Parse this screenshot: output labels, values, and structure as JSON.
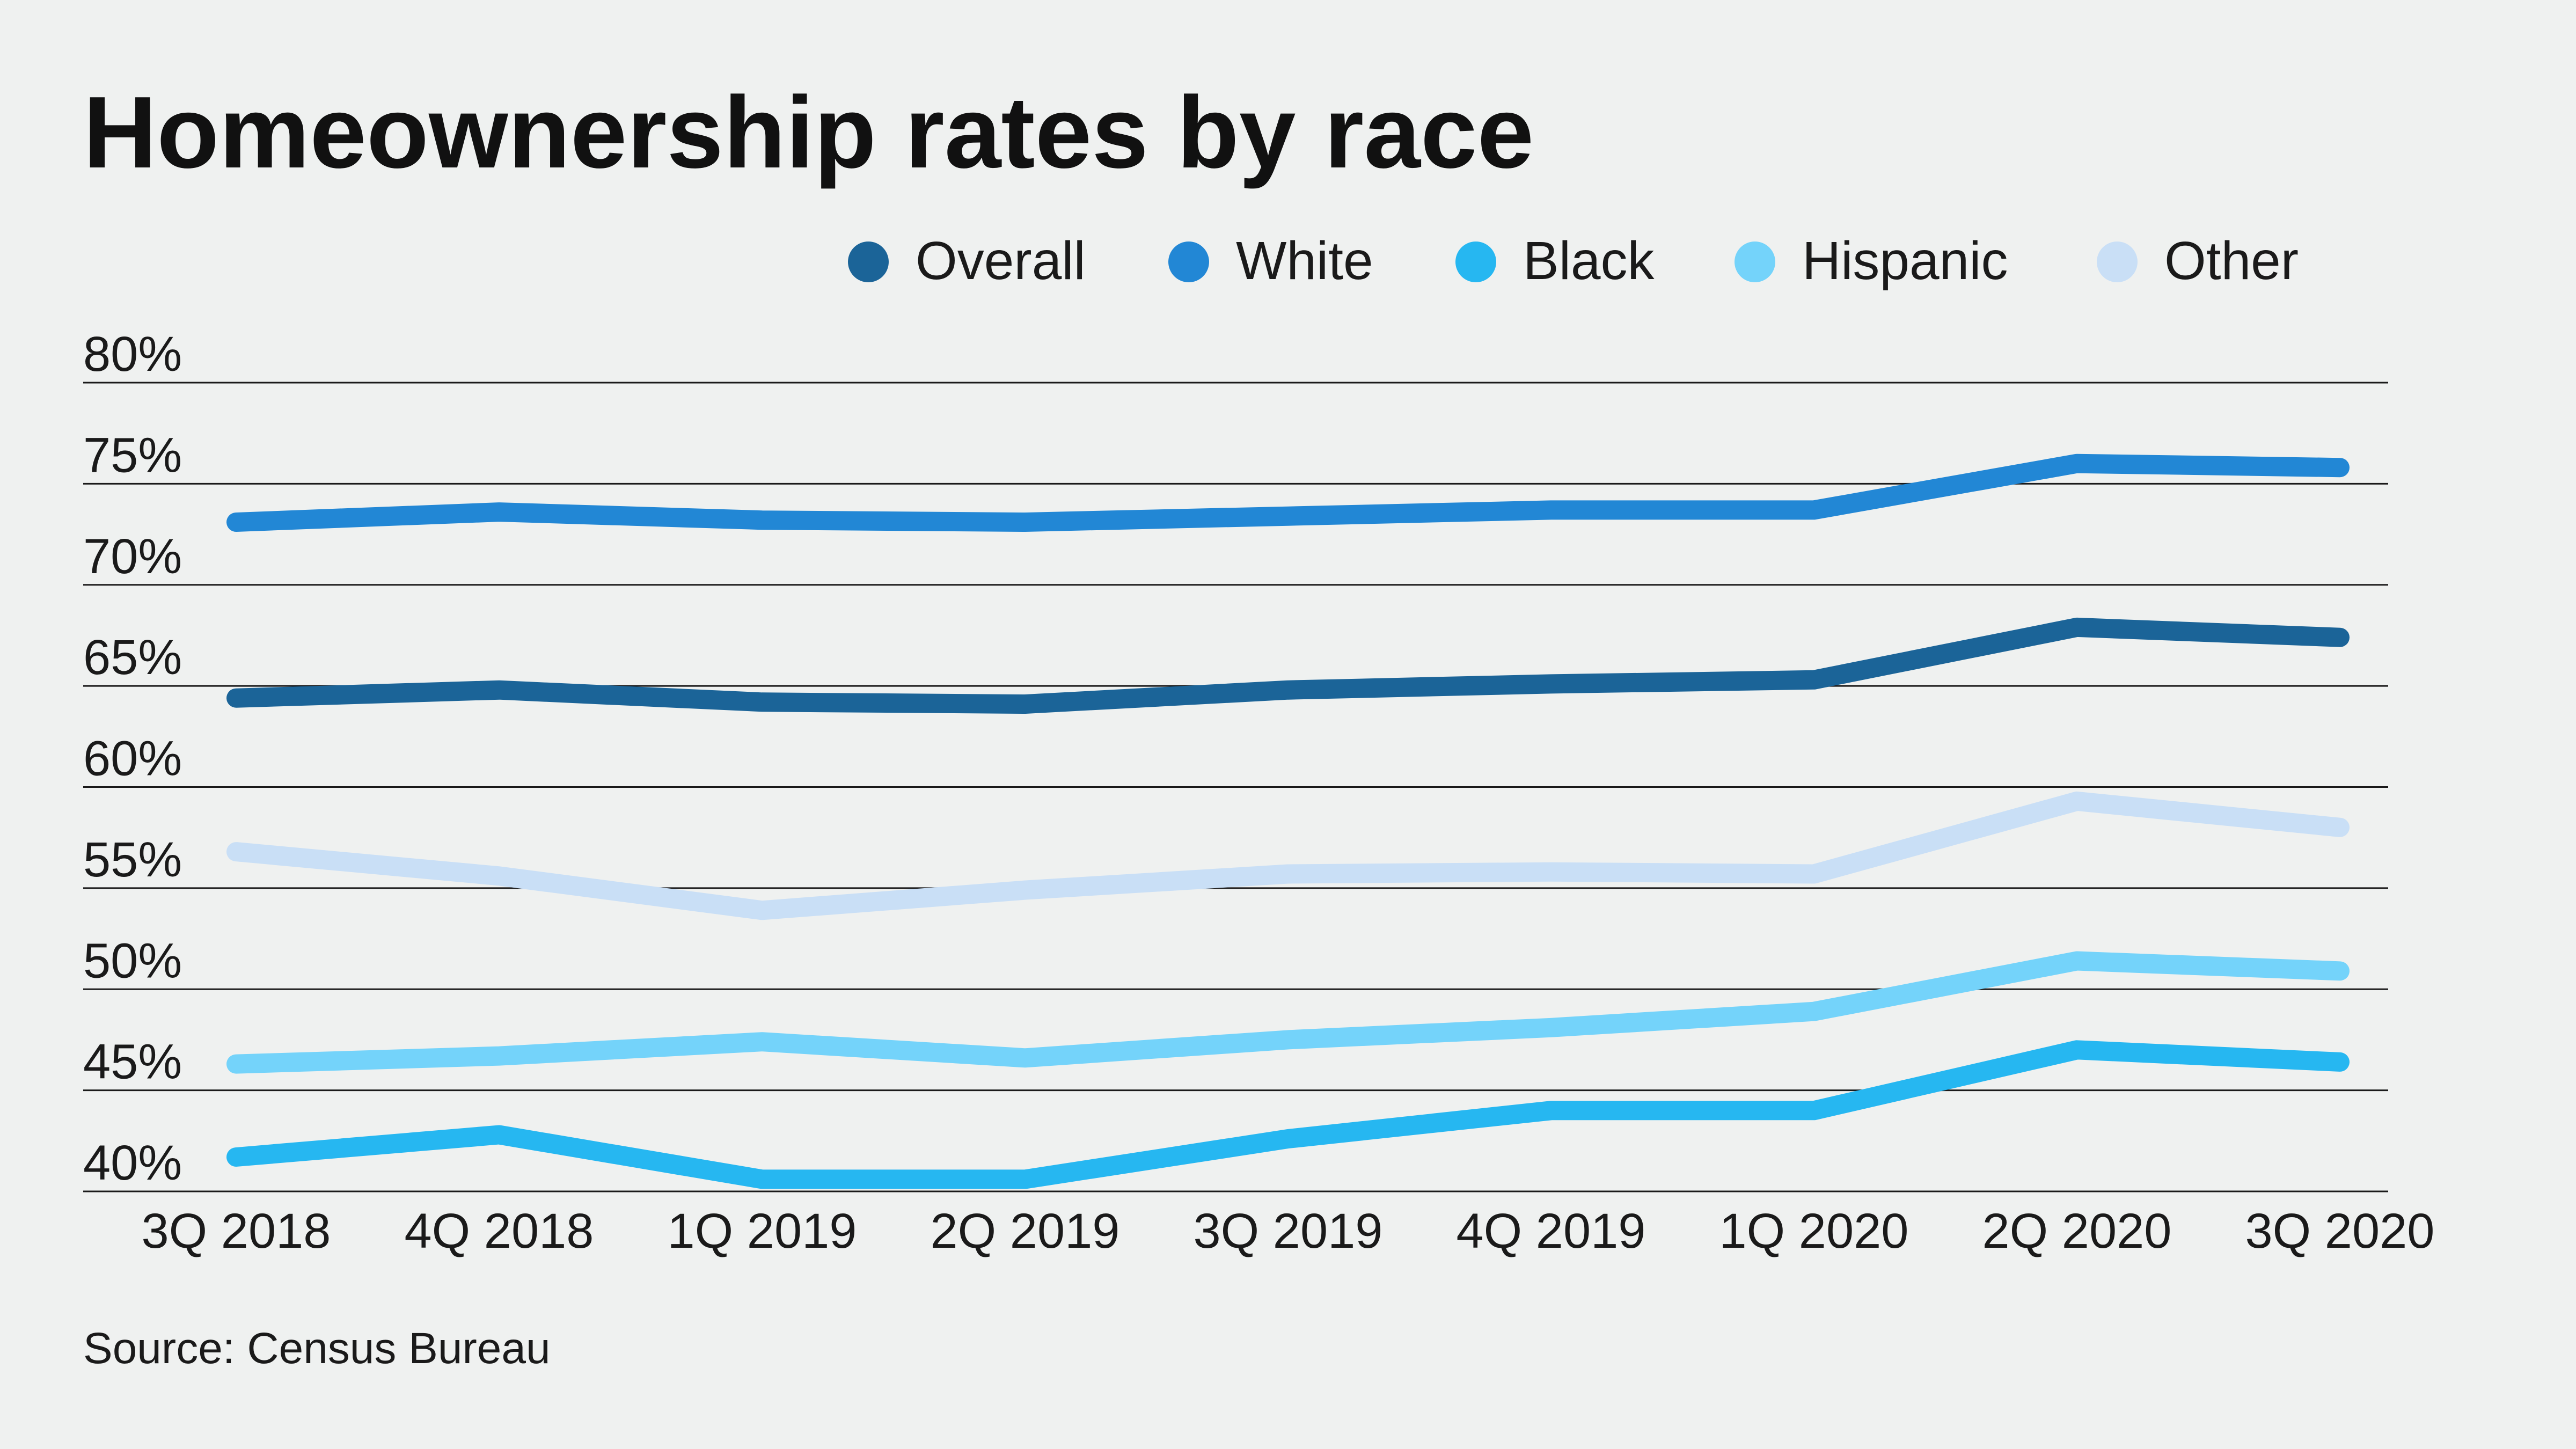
{
  "chart_data": {
    "type": "line",
    "title": "Homeownership rates by race",
    "source": "Source: Census Bureau",
    "categories": [
      "3Q 2018",
      "4Q 2018",
      "1Q 2019",
      "2Q 2019",
      "3Q 2019",
      "4Q 2019",
      "1Q 2020",
      "2Q 2020",
      "3Q 2020"
    ],
    "ylim": [
      40,
      80
    ],
    "yticks": [
      80,
      75,
      70,
      65,
      60,
      55,
      50,
      45,
      40
    ],
    "ytick_labels": [
      "80%",
      "75%",
      "70%",
      "65%",
      "60%",
      "55%",
      "50%",
      "45%",
      "40%"
    ],
    "grid": "horizontal",
    "legend_position": "top-right",
    "series": [
      {
        "name": "Overall",
        "color": "#1b6498",
        "values": [
          64.4,
          64.8,
          64.2,
          64.1,
          64.8,
          65.1,
          65.3,
          67.9,
          67.4
        ]
      },
      {
        "name": "White",
        "color": "#2287d5",
        "values": [
          73.1,
          73.6,
          73.2,
          73.1,
          73.4,
          73.7,
          73.7,
          76.0,
          75.8
        ]
      },
      {
        "name": "Black",
        "color": "#26b7f1",
        "values": [
          41.7,
          42.8,
          40.6,
          40.6,
          42.6,
          44.0,
          44.0,
          47.0,
          46.4
        ]
      },
      {
        "name": "Hispanic",
        "color": "#74d3fa",
        "values": [
          46.3,
          46.7,
          47.4,
          46.6,
          47.5,
          48.1,
          48.9,
          51.4,
          50.9
        ]
      },
      {
        "name": "Other",
        "color": "#c9dff6",
        "values": [
          56.8,
          55.6,
          53.9,
          54.9,
          55.7,
          55.8,
          55.7,
          59.3,
          58.0
        ]
      }
    ]
  }
}
